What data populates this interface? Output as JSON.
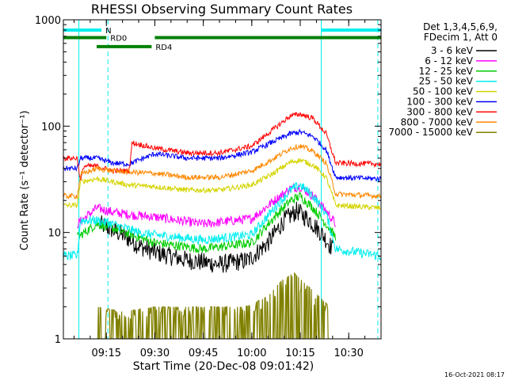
{
  "chart_data": {
    "type": "line",
    "title": "RHESSI Observing Summary Count Rates",
    "xlabel": "Start Time (20-Dec-08 09:01:42)",
    "ylabel": "Count Rate (s⁻¹ detector⁻¹)",
    "y_scale": "log",
    "ylim": [
      1,
      1000
    ],
    "xlim": [
      "09:01:42",
      "10:40:00"
    ],
    "y_ticks": [
      {
        "value": 1,
        "label": "1"
      },
      {
        "value": 10,
        "label": "10"
      },
      {
        "value": 100,
        "label": "100"
      },
      {
        "value": 1000,
        "label": "1000"
      }
    ],
    "x_ticks": [
      {
        "value": "09:15",
        "label": "09:15"
      },
      {
        "value": "09:30",
        "label": "09:30"
      },
      {
        "value": "09:45",
        "label": "09:45"
      },
      {
        "value": "10:00",
        "label": "10:00"
      },
      {
        "value": "10:15",
        "label": "10:15"
      },
      {
        "value": "10:30",
        "label": "10:30"
      }
    ],
    "legend_position": "right",
    "legend_header": [
      "Det 1,3,4,5,6,9,",
      "FDecim 1, Att 0"
    ],
    "grid": false,
    "series": [
      {
        "name": "3 - 6 keV",
        "color": "#000000",
        "points": [
          [
            "09:13",
            12
          ],
          [
            "09:20",
            9.5
          ],
          [
            "09:25",
            7.5
          ],
          [
            "09:30",
            6.5
          ],
          [
            "09:40",
            5.5
          ],
          [
            "09:50",
            5
          ],
          [
            "09:59",
            5.5
          ],
          [
            "10:05",
            8
          ],
          [
            "10:10",
            13
          ],
          [
            "10:14",
            16
          ],
          [
            "10:18",
            13
          ],
          [
            "10:22",
            9.5
          ],
          [
            "10:25",
            7
          ]
        ]
      },
      {
        "name": "6 - 12 keV",
        "color": "#ff00ff",
        "points": [
          [
            "09:06",
            12
          ],
          [
            "09:12",
            17
          ],
          [
            "09:17",
            15.5
          ],
          [
            "09:24",
            14.5
          ],
          [
            "09:30",
            14
          ],
          [
            "09:45",
            12
          ],
          [
            "10:00",
            13.5
          ],
          [
            "10:07",
            20
          ],
          [
            "10:12",
            26
          ],
          [
            "10:15",
            27
          ],
          [
            "10:19",
            22
          ],
          [
            "10:23",
            16
          ],
          [
            "10:26",
            12
          ]
        ]
      },
      {
        "name": "12 - 25 keV",
        "color": "#00cc00",
        "points": [
          [
            "09:06",
            9
          ],
          [
            "09:12",
            12
          ],
          [
            "09:17",
            11
          ],
          [
            "09:25",
            9
          ],
          [
            "09:30",
            8
          ],
          [
            "09:45",
            7
          ],
          [
            "10:00",
            8
          ],
          [
            "10:07",
            14
          ],
          [
            "10:12",
            20
          ],
          [
            "10:15",
            22
          ],
          [
            "10:19",
            17
          ],
          [
            "10:23",
            12
          ],
          [
            "10:26",
            9
          ]
        ]
      },
      {
        "name": "25 - 50 keV",
        "color": "#00eeee",
        "points": [
          [
            "09:01:42",
            6
          ],
          [
            "09:06",
            6
          ],
          [
            "09:07",
            13
          ],
          [
            "09:12",
            13
          ],
          [
            "09:17",
            12
          ],
          [
            "09:25",
            10
          ],
          [
            "09:30",
            9.5
          ],
          [
            "09:45",
            8.5
          ],
          [
            "10:00",
            9.5
          ],
          [
            "10:07",
            17
          ],
          [
            "10:12",
            25
          ],
          [
            "10:15",
            28
          ],
          [
            "10:19",
            22
          ],
          [
            "10:23",
            15
          ],
          [
            "10:26",
            7
          ],
          [
            "10:40",
            6
          ]
        ]
      },
      {
        "name": "50 - 100 keV",
        "color": "#d4d400",
        "points": [
          [
            "09:01:42",
            18
          ],
          [
            "09:06",
            18
          ],
          [
            "09:07",
            30
          ],
          [
            "09:12",
            32
          ],
          [
            "09:17",
            30
          ],
          [
            "09:22",
            28
          ],
          [
            "09:30",
            27
          ],
          [
            "09:40",
            25
          ],
          [
            "09:50",
            25
          ],
          [
            "10:00",
            28
          ],
          [
            "10:06",
            35
          ],
          [
            "10:12",
            46
          ],
          [
            "10:15",
            48
          ],
          [
            "10:19",
            43
          ],
          [
            "10:23",
            33
          ],
          [
            "10:26",
            18
          ],
          [
            "10:40",
            17
          ]
        ]
      },
      {
        "name": "100 - 300 keV",
        "color": "#0000ff",
        "points": [
          [
            "09:01:42",
            40
          ],
          [
            "09:06",
            40
          ],
          [
            "09:07",
            50
          ],
          [
            "09:12",
            50
          ],
          [
            "09:17",
            45
          ],
          [
            "09:22",
            44
          ],
          [
            "09:30",
            55
          ],
          [
            "09:40",
            50
          ],
          [
            "09:50",
            50
          ],
          [
            "10:00",
            57
          ],
          [
            "10:06",
            70
          ],
          [
            "10:12",
            85
          ],
          [
            "10:15",
            88
          ],
          [
            "10:19",
            80
          ],
          [
            "10:23",
            60
          ],
          [
            "10:26",
            33
          ],
          [
            "10:40",
            32
          ]
        ]
      },
      {
        "name": "300 - 800 keV",
        "color": "#ff0000",
        "points": [
          [
            "09:01:42",
            50
          ],
          [
            "09:06",
            50
          ],
          [
            "09:07",
            30
          ],
          [
            "09:08",
            42
          ],
          [
            "09:12",
            42
          ],
          [
            "09:17",
            38
          ],
          [
            "09:22",
            38
          ],
          [
            "09:23",
            70
          ],
          [
            "09:30",
            62
          ],
          [
            "09:40",
            56
          ],
          [
            "09:50",
            56
          ],
          [
            "10:00",
            65
          ],
          [
            "10:06",
            90
          ],
          [
            "10:12",
            125
          ],
          [
            "10:15",
            130
          ],
          [
            "10:19",
            118
          ],
          [
            "10:23",
            85
          ],
          [
            "10:26",
            45
          ],
          [
            "10:40",
            44
          ]
        ]
      },
      {
        "name": "800 - 7000 keV",
        "color": "#ff8800",
        "points": [
          [
            "09:01:42",
            22
          ],
          [
            "09:06",
            22
          ],
          [
            "09:07",
            35
          ],
          [
            "09:12",
            40
          ],
          [
            "09:17",
            38
          ],
          [
            "09:22",
            37
          ],
          [
            "09:30",
            36
          ],
          [
            "09:40",
            33
          ],
          [
            "09:50",
            33
          ],
          [
            "10:00",
            38
          ],
          [
            "10:06",
            48
          ],
          [
            "10:12",
            62
          ],
          [
            "10:15",
            65
          ],
          [
            "10:19",
            58
          ],
          [
            "10:23",
            45
          ],
          [
            "10:26",
            23
          ],
          [
            "10:40",
            22
          ]
        ]
      },
      {
        "name": "7000 - 15000 keV",
        "color": "#808000",
        "points": [
          [
            "09:12",
            2
          ],
          [
            "09:20",
            1.8
          ],
          [
            "09:30",
            2
          ],
          [
            "09:40",
            2
          ],
          [
            "09:48",
            2
          ],
          [
            "09:58",
            2
          ],
          [
            "10:05",
            2.5
          ],
          [
            "10:09",
            3.5
          ],
          [
            "10:13",
            4.2
          ],
          [
            "10:17",
            3.2
          ],
          [
            "10:21",
            2.5
          ],
          [
            "10:24",
            2
          ]
        ]
      }
    ],
    "flag_annotations": [
      {
        "label": "N",
        "color": "#00eeee",
        "spans": [
          [
            "09:01:42",
            "09:13:30"
          ],
          [
            "10:21:30",
            "10:40:00"
          ]
        ],
        "level": 800
      },
      {
        "label": "RD0",
        "color": "#008000",
        "spans": [
          [
            "09:01:42",
            "09:15:00"
          ],
          [
            "09:30:00",
            "10:40:00"
          ]
        ],
        "level": 680
      },
      {
        "label": "RD4",
        "color": "#008000",
        "spans": [
          [
            "09:12:00",
            "09:29:00"
          ]
        ],
        "level": 560
      }
    ],
    "vertical_markers": [
      {
        "time": "09:06:30",
        "color": "#00eeee",
        "style": "solid"
      },
      {
        "time": "09:15:30",
        "color": "#00eeee",
        "style": "dashed"
      },
      {
        "time": "10:21:30",
        "color": "#00eeee",
        "style": "solid"
      },
      {
        "time": "10:39:00",
        "color": "#00eeee",
        "style": "dashed"
      }
    ]
  },
  "footer_timestamp": "16-Oct-2021 08:17"
}
